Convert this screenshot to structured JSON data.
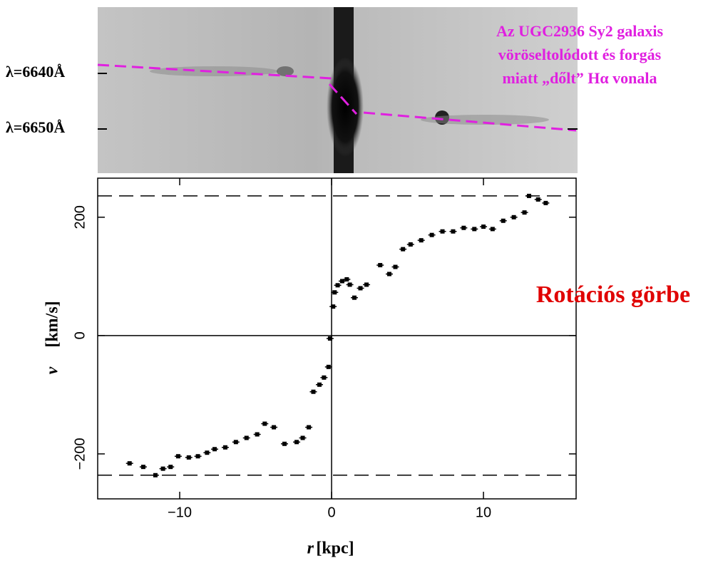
{
  "chart_data": {
    "type": "scatter",
    "xlabel": {
      "symbol": "r",
      "unit": "[kpc]"
    },
    "ylabel": {
      "symbol": "v",
      "unit": "[km/s]"
    },
    "xlim": [
      -15.4,
      16.1
    ],
    "ylim": [
      -276,
      266
    ],
    "xticks": [
      {
        "value": -10,
        "label": "−10"
      },
      0,
      10
    ],
    "yticks": [
      {
        "value": -200,
        "label": "−200"
      },
      0,
      200
    ],
    "hlines": [
      236,
      -236
    ],
    "color": "#000000",
    "x": [
      0.1,
      0.2,
      0.4,
      0.7,
      1.0,
      1.2,
      1.5,
      1.9,
      2.3,
      3.2,
      3.8,
      4.2,
      4.7,
      5.2,
      5.9,
      6.6,
      7.3,
      8.0,
      8.7,
      9.4,
      10.0,
      10.6,
      11.3,
      12.0,
      12.7,
      13.0,
      13.6,
      14.1,
      -0.1,
      -0.2,
      -0.5,
      -0.8,
      -1.2,
      -1.5,
      -1.9,
      -2.3,
      -3.1,
      -3.8,
      -4.4,
      -4.9,
      -5.6,
      -6.3,
      -7.0,
      -7.7,
      -8.2,
      -8.8,
      -9.4,
      -10.1,
      -10.6,
      -11.1,
      -11.6,
      -12.4,
      -13.3
    ],
    "values": [
      49,
      73,
      85,
      92,
      95,
      86,
      64,
      80,
      86,
      119,
      104,
      116,
      146,
      154,
      161,
      170,
      176,
      176,
      182,
      180,
      184,
      180,
      194,
      200,
      208,
      236,
      230,
      224,
      -5,
      -53,
      -71,
      -83,
      -95,
      -155,
      -173,
      -180,
      -183,
      -155,
      -149,
      -167,
      -173,
      -180,
      -189,
      -192,
      -198,
      -204,
      -206,
      -204,
      -222,
      -225,
      -236,
      -222,
      -216
    ],
    "spectrum_labels": [
      "λ=6640Å",
      "λ=6650Å"
    ],
    "annotation": [
      "Az UGC2936 Sy2 galaxis",
      "vöröseltolódott és forgás",
      "miatt „dőlt” Hα vonala"
    ],
    "callout": "Rotációs görbe"
  }
}
